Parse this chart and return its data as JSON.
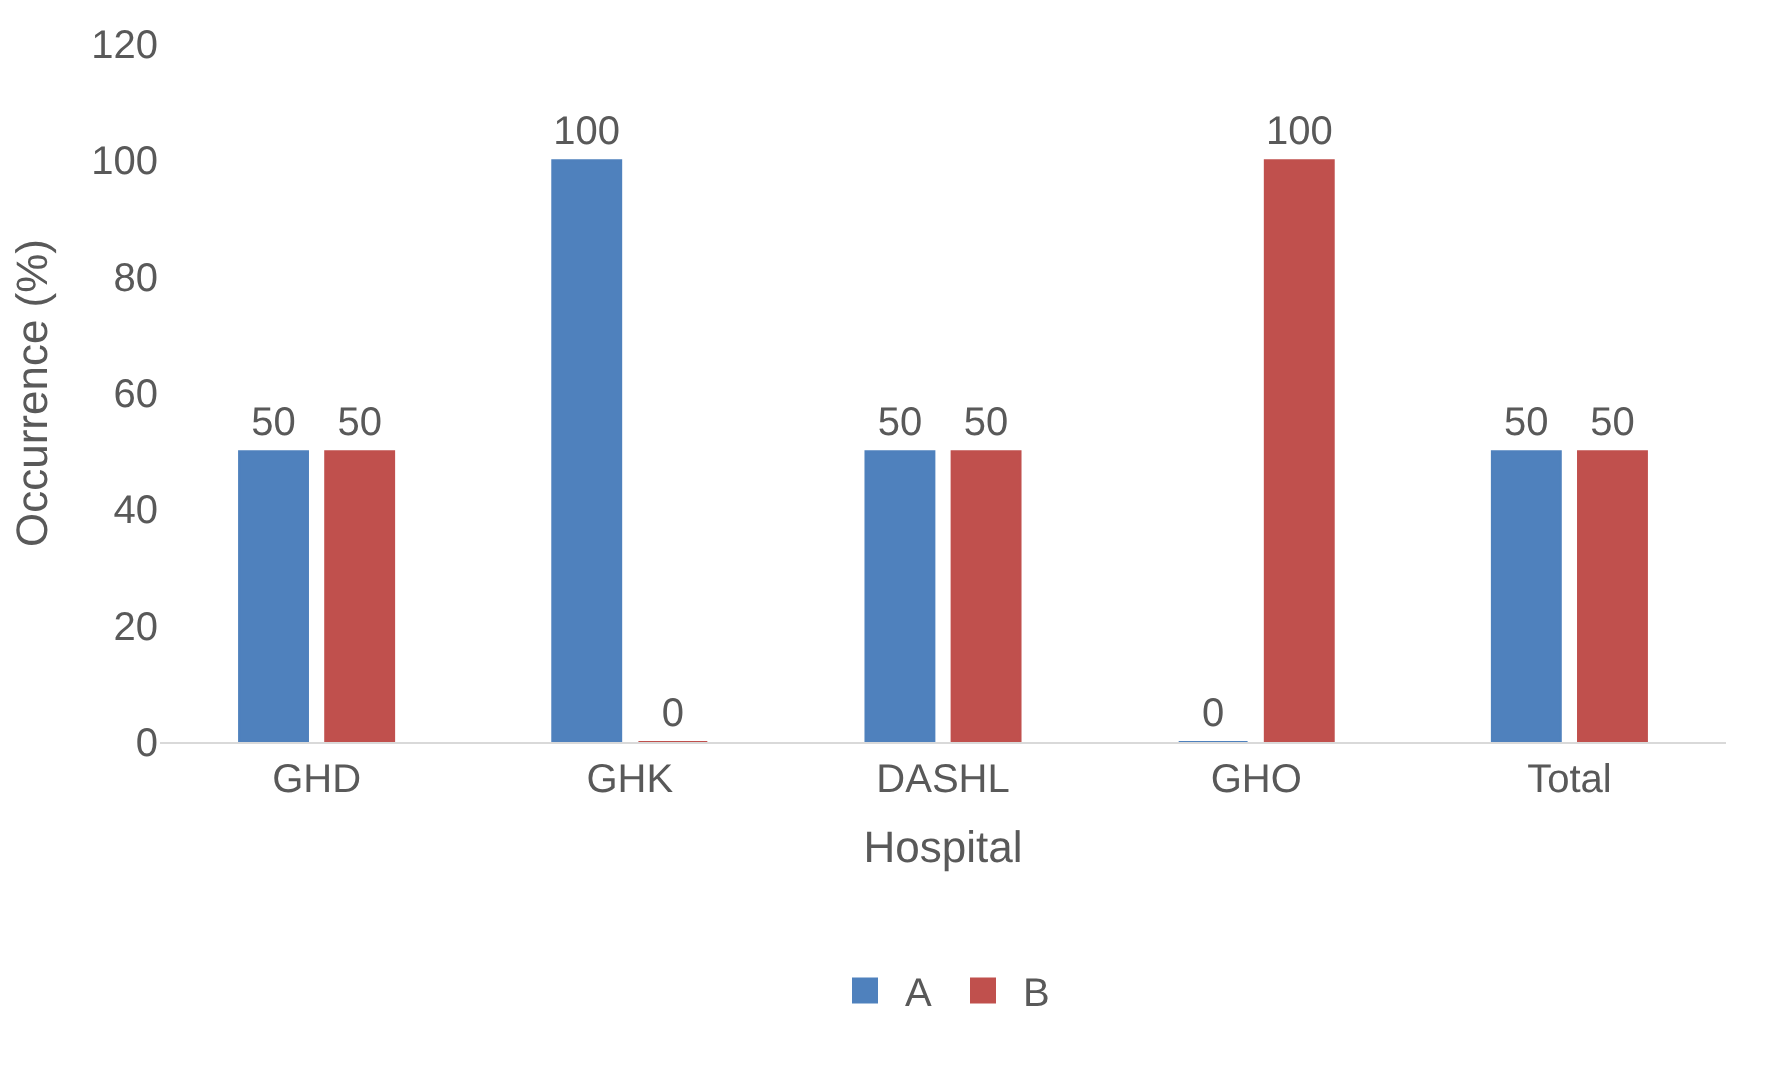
{
  "chart_data": {
    "type": "bar",
    "xlabel": "Hospital",
    "ylabel": "Occurrence (%)",
    "categories": [
      "GHD",
      "GHK",
      "DASHL",
      "GHO",
      "Total"
    ],
    "series": [
      {
        "name": "A",
        "color": "#4f81bd",
        "values": [
          50,
          100,
          50,
          0,
          50
        ]
      },
      {
        "name": "B",
        "color": "#c0504d",
        "values": [
          50,
          0,
          50,
          100,
          50
        ]
      }
    ],
    "ylim": [
      0,
      120
    ],
    "yticks": [
      0,
      20,
      40,
      60,
      80,
      100,
      120
    ],
    "grid": false,
    "legend": "bottom",
    "data_labels": true
  }
}
